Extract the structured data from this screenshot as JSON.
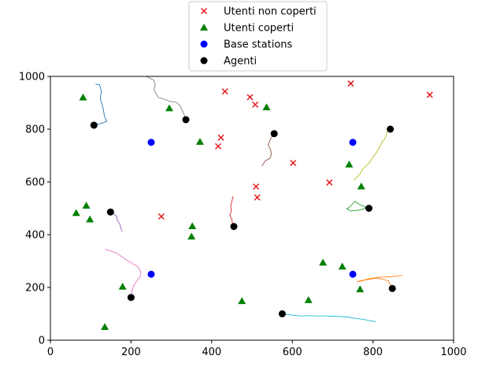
{
  "chart_data": {
    "type": "scatter",
    "xlim": [
      0,
      1000
    ],
    "ylim": [
      0,
      1000
    ],
    "xticks": [
      0,
      200,
      400,
      600,
      800,
      1000
    ],
    "yticks": [
      0,
      200,
      400,
      600,
      800,
      1000
    ],
    "grid": false,
    "legend_position": "top-center",
    "series": [
      {
        "name": "Utenti non coperti",
        "marker": "x",
        "color": "#e41a1c",
        "points": [
          [
            433,
            943
          ],
          [
            745,
            973
          ],
          [
            941,
            930
          ],
          [
            495,
            921
          ],
          [
            508,
            893
          ],
          [
            423,
            768
          ],
          [
            416,
            735
          ],
          [
            602,
            672
          ],
          [
            692,
            598
          ],
          [
            510,
            582
          ],
          [
            513,
            541
          ],
          [
            275,
            469
          ]
        ]
      },
      {
        "name": "Utenti coperti",
        "marker": "triangle",
        "color": "#008000",
        "points": [
          [
            81,
            920
          ],
          [
            295,
            879
          ],
          [
            536,
            883
          ],
          [
            371,
            752
          ],
          [
            741,
            666
          ],
          [
            771,
            583
          ],
          [
            89,
            510
          ],
          [
            64,
            482
          ],
          [
            98,
            458
          ],
          [
            352,
            432
          ],
          [
            350,
            393
          ],
          [
            676,
            294
          ],
          [
            724,
            279
          ],
          [
            179,
            203
          ],
          [
            768,
            193
          ],
          [
            475,
            148
          ],
          [
            640,
            152
          ],
          [
            135,
            50
          ]
        ]
      },
      {
        "name": "Base stations",
        "marker": "circle",
        "color": "#0000ff",
        "points": [
          [
            250,
            750
          ],
          [
            750,
            750
          ],
          [
            250,
            250
          ],
          [
            750,
            250
          ]
        ]
      },
      {
        "name": "Agenti",
        "marker": "circle",
        "color": "#000000",
        "points": [
          [
            108,
            815
          ],
          [
            336,
            836
          ],
          [
            555,
            783
          ],
          [
            843,
            800
          ],
          [
            149,
            486
          ],
          [
            455,
            431
          ],
          [
            790,
            500
          ],
          [
            200,
            162
          ],
          [
            575,
            100
          ],
          [
            848,
            196
          ]
        ]
      }
    ],
    "trajectories": [
      {
        "color": "#1f77b4",
        "points": [
          [
            112,
            970
          ],
          [
            122,
            968
          ],
          [
            126,
            945
          ],
          [
            124,
            915
          ],
          [
            128,
            895
          ],
          [
            132,
            870
          ],
          [
            134,
            848
          ],
          [
            140,
            830
          ],
          [
            128,
            822
          ],
          [
            112,
            816
          ]
        ]
      },
      {
        "color": "#7f7f7f",
        "points": [
          [
            238,
            1000
          ],
          [
            248,
            992
          ],
          [
            256,
            986
          ],
          [
            260,
            970
          ],
          [
            257,
            950
          ],
          [
            262,
            935
          ],
          [
            268,
            920
          ],
          [
            280,
            915
          ],
          [
            296,
            905
          ],
          [
            312,
            902
          ],
          [
            322,
            888
          ],
          [
            330,
            860
          ],
          [
            336,
            840
          ]
        ]
      },
      {
        "color": "#8c564b",
        "points": [
          [
            525,
            660
          ],
          [
            533,
            680
          ],
          [
            545,
            690
          ],
          [
            548,
            705
          ],
          [
            546,
            723
          ],
          [
            540,
            740
          ],
          [
            545,
            760
          ],
          [
            550,
            772
          ],
          [
            555,
            783
          ]
        ]
      },
      {
        "color": "#bcbd22",
        "points": [
          [
            838,
            800
          ],
          [
            834,
            784
          ],
          [
            830,
            765
          ],
          [
            822,
            750
          ],
          [
            817,
            733
          ],
          [
            808,
            710
          ],
          [
            798,
            690
          ],
          [
            790,
            670
          ],
          [
            775,
            650
          ],
          [
            768,
            630
          ],
          [
            758,
            615
          ],
          [
            752,
            605
          ]
        ]
      },
      {
        "color": "#9467bd",
        "points": [
          [
            150,
            486
          ],
          [
            158,
            478
          ],
          [
            164,
            470
          ],
          [
            166,
            455
          ],
          [
            172,
            440
          ],
          [
            176,
            420
          ],
          [
            178,
            412
          ]
        ]
      },
      {
        "color": "#d62728",
        "points": [
          [
            455,
            431
          ],
          [
            452,
            440
          ],
          [
            450,
            458
          ],
          [
            445,
            475
          ],
          [
            449,
            490
          ],
          [
            447,
            508
          ],
          [
            450,
            525
          ],
          [
            453,
            545
          ]
        ]
      },
      {
        "color": "#2ca02c",
        "points": [
          [
            790,
            500
          ],
          [
            778,
            507
          ],
          [
            766,
            515
          ],
          [
            755,
            527
          ],
          [
            750,
            518
          ],
          [
            742,
            505
          ],
          [
            735,
            498
          ],
          [
            745,
            490
          ],
          [
            760,
            492
          ],
          [
            775,
            496
          ],
          [
            785,
            505
          ]
        ]
      },
      {
        "color": "#e377c2",
        "points": [
          [
            136,
            345
          ],
          [
            150,
            338
          ],
          [
            164,
            330
          ],
          [
            176,
            318
          ],
          [
            190,
            302
          ],
          [
            198,
            296
          ],
          [
            205,
            289
          ],
          [
            214,
            282
          ],
          [
            220,
            272
          ],
          [
            224,
            258
          ],
          [
            222,
            240
          ],
          [
            214,
            225
          ],
          [
            206,
            206
          ],
          [
            202,
            185
          ],
          [
            200,
            162
          ]
        ]
      },
      {
        "color": "#17becf",
        "points": [
          [
            575,
            100
          ],
          [
            600,
            95
          ],
          [
            620,
            92
          ],
          [
            645,
            93
          ],
          [
            660,
            92
          ],
          [
            680,
            92
          ],
          [
            700,
            91
          ],
          [
            720,
            90
          ],
          [
            738,
            88
          ],
          [
            755,
            83
          ],
          [
            772,
            80
          ],
          [
            790,
            75
          ],
          [
            808,
            70
          ]
        ]
      },
      {
        "color": "#ff7f0e",
        "points": [
          [
            848,
            196
          ],
          [
            843,
            210
          ],
          [
            838,
            225
          ],
          [
            825,
            230
          ],
          [
            810,
            236
          ],
          [
            795,
            232
          ],
          [
            780,
            228
          ],
          [
            770,
            224
          ],
          [
            760,
            222
          ],
          [
            775,
            227
          ],
          [
            790,
            233
          ],
          [
            810,
            238
          ],
          [
            835,
            240
          ],
          [
            855,
            242
          ],
          [
            872,
            246
          ]
        ]
      }
    ]
  }
}
